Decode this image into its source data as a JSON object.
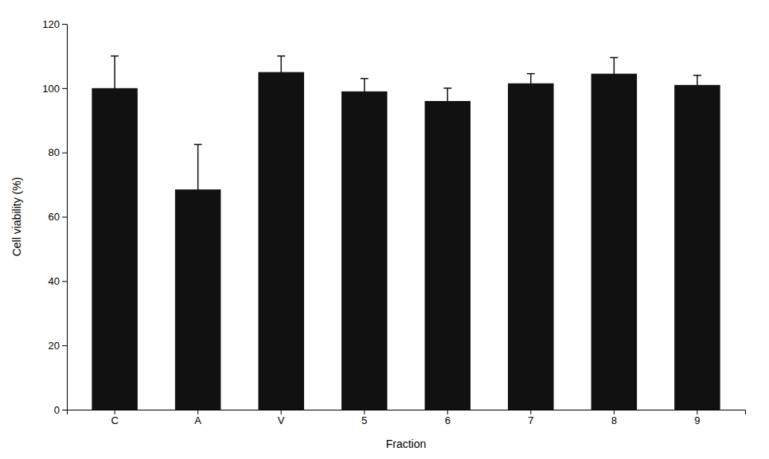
{
  "chart_data": {
    "type": "bar",
    "categories": [
      "C",
      "A",
      "V",
      "5",
      "6",
      "7",
      "8",
      "9"
    ],
    "values": [
      100,
      68.5,
      105,
      99,
      96,
      101.5,
      104.5,
      101
    ],
    "errors": [
      10,
      14,
      5,
      4,
      4,
      3,
      5,
      3
    ],
    "color": "#111111",
    "xlabel": "Fraction",
    "ylabel": "Cell viability (%)",
    "ylim": [
      0,
      120
    ],
    "yticks": [
      0,
      20,
      40,
      60,
      80,
      100,
      120
    ],
    "grid": false
  }
}
